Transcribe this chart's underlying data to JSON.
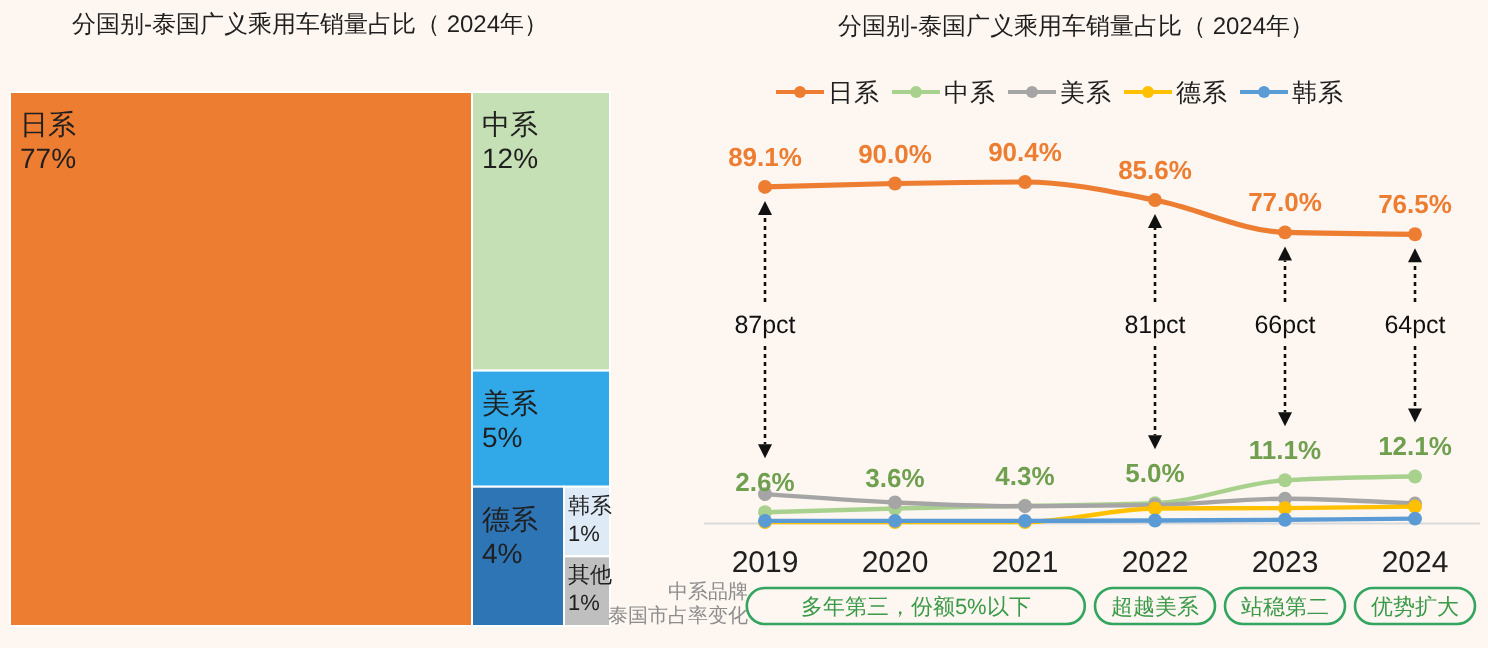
{
  "chart_data": [
    {
      "type": "other",
      "title": "分国别-泰国广义乘用车销量占比（ 2024年）",
      "categories": [
        "日系",
        "中系",
        "美系",
        "德系",
        "韩系",
        "其他"
      ],
      "values": [
        77,
        12,
        5,
        4,
        1,
        1
      ],
      "value_labels": [
        "77%",
        "12%",
        "5%",
        "4%",
        "1%",
        "1%"
      ],
      "colors": [
        "#ed7d31",
        "#c5e0b4",
        "#31a9e9",
        "#2e75b6",
        "#deebf7",
        "#bfbfbf"
      ]
    },
    {
      "type": "line",
      "title": "分国别-泰国广义乘用车销量占比（ 2024年）",
      "categories": [
        "2019",
        "2020",
        "2021",
        "2022",
        "2023",
        "2024"
      ],
      "series": [
        {
          "name": "日系",
          "color": "#ed7d31",
          "values": [
            89.1,
            90.0,
            90.4,
            85.6,
            77.0,
            76.5
          ],
          "value_labels": [
            "89.1%",
            "90.0%",
            "90.4%",
            "85.6%",
            "77.0%",
            "76.5%"
          ]
        },
        {
          "name": "中系",
          "color": "#a9d18e",
          "values": [
            2.6,
            3.6,
            4.3,
            5.0,
            11.1,
            12.1
          ],
          "value_labels": [
            "2.6%",
            "3.6%",
            "4.3%",
            "5.0%",
            "11.1%",
            "12.1%"
          ]
        },
        {
          "name": "美系",
          "color": "#a5a5a5",
          "values": [
            7.4,
            5.2,
            4.2,
            4.5,
            6.2,
            4.9
          ]
        },
        {
          "name": "德系",
          "color": "#ffc000",
          "values": [
            0,
            0,
            0,
            3.6,
            3.7,
            4.1
          ]
        },
        {
          "name": "韩系",
          "color": "#5b9bd5",
          "values": [
            0.3,
            0.3,
            0.3,
            0.4,
            0.6,
            0.9
          ]
        }
      ],
      "legend": "top",
      "marker": "circle",
      "line_style": "solid",
      "annotations": [
        "87pct",
        "81pct",
        "66pct",
        "64pct",
        "中系品牌泰国市占率变化",
        "多年第三，份额5%以下",
        "超越美系",
        "站稳第二",
        "优势扩大"
      ]
    }
  ]
}
